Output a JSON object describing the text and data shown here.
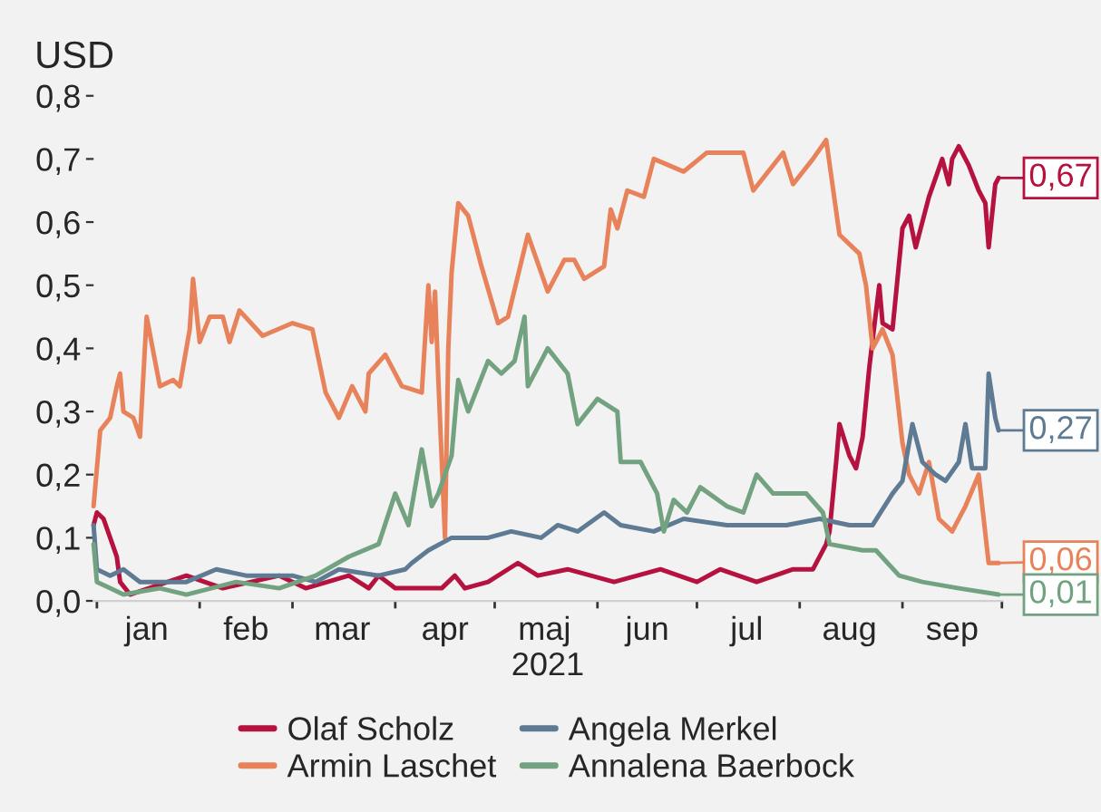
{
  "chart_data": {
    "type": "line",
    "ylabel": "USD",
    "xlabel": "2021",
    "legend": "bottom",
    "grid": false,
    "marker": "none",
    "line_style": "solid",
    "xticks": [
      {
        "value": "2021-01-01",
        "label": null
      },
      {
        "value": "2021-01-16",
        "label": "jan"
      },
      {
        "value": "2021-02-01",
        "label": null
      },
      {
        "value": "2021-02-15",
        "label": "feb"
      },
      {
        "value": "2021-03-01",
        "label": null
      },
      {
        "value": "2021-03-16",
        "label": "mar"
      },
      {
        "value": "2021-04-01",
        "label": null
      },
      {
        "value": "2021-04-16",
        "label": "apr"
      },
      {
        "value": "2021-05-01",
        "label": null
      },
      {
        "value": "2021-05-16",
        "label": "maj"
      },
      {
        "value": "2021-06-01",
        "label": null
      },
      {
        "value": "2021-06-16",
        "label": "jun"
      },
      {
        "value": "2021-07-01",
        "label": null
      },
      {
        "value": "2021-07-16",
        "label": "jul"
      },
      {
        "value": "2021-08-01",
        "label": null
      },
      {
        "value": "2021-08-16",
        "label": "aug"
      },
      {
        "value": "2021-09-01",
        "label": null
      },
      {
        "value": "2021-09-16",
        "label": "sep"
      },
      {
        "value": "2021-10-01",
        "label": null
      }
    ],
    "xlim": [
      "2020-12-31",
      "2021-10-01"
    ],
    "ylim": [
      0,
      0.8
    ],
    "yticks": [
      {
        "value": 0,
        "label": "0,0"
      },
      {
        "value": 0.1,
        "label": "0,1"
      },
      {
        "value": 0.2,
        "label": "0,2"
      },
      {
        "value": 0.3,
        "label": "0,3"
      },
      {
        "value": 0.4,
        "label": "0,4"
      },
      {
        "value": 0.5,
        "label": "0,5"
      },
      {
        "value": 0.6,
        "label": "0,6"
      },
      {
        "value": 0.7,
        "label": "0,7"
      },
      {
        "value": 0.8,
        "label": "0,8"
      }
    ],
    "series": [
      {
        "name": "Olaf Scholz",
        "color": "#b5123f",
        "x": [
          "2020-12-31",
          "2021-01-01",
          "2021-01-03",
          "2021-01-05",
          "2021-01-07",
          "2021-01-08",
          "2021-01-11",
          "2021-01-28",
          "2021-02-08",
          "2021-02-25",
          "2021-03-05",
          "2021-03-18",
          "2021-03-24",
          "2021-03-27",
          "2021-04-01",
          "2021-04-15",
          "2021-04-19",
          "2021-04-22",
          "2021-04-29",
          "2021-05-08",
          "2021-05-14",
          "2021-05-23",
          "2021-06-06",
          "2021-06-20",
          "2021-07-01",
          "2021-07-08",
          "2021-07-19",
          "2021-07-30",
          "2021-08-05",
          "2021-08-09",
          "2021-08-10",
          "2021-08-12",
          "2021-08-13",
          "2021-08-16",
          "2021-08-18",
          "2021-08-20",
          "2021-08-22",
          "2021-08-25",
          "2021-08-26",
          "2021-08-29",
          "2021-09-01",
          "2021-09-03",
          "2021-09-05",
          "2021-09-09",
          "2021-09-13",
          "2021-09-15",
          "2021-09-16",
          "2021-09-18",
          "2021-09-21",
          "2021-09-24",
          "2021-09-26",
          "2021-09-27",
          "2021-09-29",
          "2021-09-30"
        ],
        "values": [
          0.12,
          0.14,
          0.13,
          0.1,
          0.07,
          0.03,
          0.01,
          0.04,
          0.02,
          0.04,
          0.02,
          0.04,
          0.02,
          0.04,
          0.02,
          0.02,
          0.04,
          0.02,
          0.03,
          0.06,
          0.04,
          0.05,
          0.03,
          0.05,
          0.03,
          0.05,
          0.03,
          0.05,
          0.05,
          0.09,
          0.11,
          0.22,
          0.28,
          0.23,
          0.21,
          0.26,
          0.37,
          0.5,
          0.44,
          0.43,
          0.59,
          0.61,
          0.56,
          0.64,
          0.7,
          0.66,
          0.7,
          0.72,
          0.69,
          0.65,
          0.63,
          0.56,
          0.66,
          0.67
        ]
      },
      {
        "name": "Armin Laschet",
        "color": "#e8825a",
        "x": [
          "2020-12-31",
          "2021-01-02",
          "2021-01-05",
          "2021-01-07",
          "2021-01-08",
          "2021-01-09",
          "2021-01-12",
          "2021-01-14",
          "2021-01-16",
          "2021-01-20",
          "2021-01-24",
          "2021-01-26",
          "2021-01-29",
          "2021-01-30",
          "2021-02-01",
          "2021-02-04",
          "2021-02-08",
          "2021-02-10",
          "2021-02-13",
          "2021-02-20",
          "2021-03-01",
          "2021-03-07",
          "2021-03-11",
          "2021-03-15",
          "2021-03-19",
          "2021-03-23",
          "2021-03-24",
          "2021-03-29",
          "2021-04-03",
          "2021-04-09",
          "2021-04-11",
          "2021-04-12",
          "2021-04-13",
          "2021-04-14",
          "2021-04-16",
          "2021-04-17",
          "2021-04-18",
          "2021-04-20",
          "2021-04-23",
          "2021-04-27",
          "2021-05-02",
          "2021-05-05",
          "2021-05-11",
          "2021-05-17",
          "2021-05-22",
          "2021-05-25",
          "2021-05-28",
          "2021-06-03",
          "2021-06-05",
          "2021-06-07",
          "2021-06-10",
          "2021-06-15",
          "2021-06-18",
          "2021-06-27",
          "2021-07-04",
          "2021-07-15",
          "2021-07-18",
          "2021-07-27",
          "2021-07-30",
          "2021-08-05",
          "2021-08-09",
          "2021-08-13",
          "2021-08-19",
          "2021-08-21",
          "2021-08-23",
          "2021-08-26",
          "2021-08-29",
          "2021-09-01",
          "2021-09-03",
          "2021-09-06",
          "2021-09-09",
          "2021-09-12",
          "2021-09-16",
          "2021-09-20",
          "2021-09-24",
          "2021-09-27",
          "2021-09-30"
        ],
        "values": [
          0.15,
          0.27,
          0.29,
          0.34,
          0.36,
          0.3,
          0.29,
          0.26,
          0.45,
          0.34,
          0.35,
          0.34,
          0.43,
          0.51,
          0.41,
          0.45,
          0.45,
          0.41,
          0.46,
          0.42,
          0.44,
          0.43,
          0.33,
          0.29,
          0.34,
          0.3,
          0.36,
          0.39,
          0.34,
          0.33,
          0.5,
          0.41,
          0.49,
          0.35,
          0.1,
          0.4,
          0.52,
          0.63,
          0.61,
          0.53,
          0.44,
          0.45,
          0.58,
          0.49,
          0.54,
          0.54,
          0.51,
          0.53,
          0.62,
          0.59,
          0.65,
          0.64,
          0.7,
          0.68,
          0.71,
          0.71,
          0.65,
          0.71,
          0.66,
          0.7,
          0.73,
          0.58,
          0.55,
          0.5,
          0.4,
          0.43,
          0.39,
          0.25,
          0.2,
          0.17,
          0.22,
          0.13,
          0.11,
          0.15,
          0.2,
          0.06,
          0.06
        ]
      },
      {
        "name": "Angela Merkel",
        "color": "#5f7a93",
        "x": [
          "2020-12-31",
          "2021-01-01",
          "2021-01-05",
          "2021-01-09",
          "2021-01-14",
          "2021-01-28",
          "2021-02-06",
          "2021-02-15",
          "2021-03-01",
          "2021-03-08",
          "2021-03-15",
          "2021-03-27",
          "2021-04-04",
          "2021-04-06",
          "2021-04-11",
          "2021-04-18",
          "2021-04-29",
          "2021-05-06",
          "2021-05-15",
          "2021-05-20",
          "2021-05-26",
          "2021-06-03",
          "2021-06-08",
          "2021-06-18",
          "2021-06-27",
          "2021-07-10",
          "2021-07-28",
          "2021-08-07",
          "2021-08-16",
          "2021-08-23",
          "2021-08-29",
          "2021-09-01",
          "2021-09-04",
          "2021-09-07",
          "2021-09-11",
          "2021-09-14",
          "2021-09-18",
          "2021-09-20",
          "2021-09-22",
          "2021-09-26",
          "2021-09-27",
          "2021-09-29",
          "2021-09-30"
        ],
        "values": [
          0.12,
          0.05,
          0.04,
          0.05,
          0.03,
          0.03,
          0.05,
          0.04,
          0.04,
          0.03,
          0.05,
          0.04,
          0.05,
          0.06,
          0.08,
          0.1,
          0.1,
          0.11,
          0.1,
          0.12,
          0.11,
          0.14,
          0.12,
          0.11,
          0.13,
          0.12,
          0.12,
          0.13,
          0.12,
          0.12,
          0.17,
          0.19,
          0.28,
          0.22,
          0.2,
          0.19,
          0.22,
          0.28,
          0.21,
          0.21,
          0.36,
          0.29,
          0.27
        ]
      },
      {
        "name": "Annalena Baerbock",
        "color": "#73a281",
        "x": [
          "2020-12-31",
          "2021-01-01",
          "2021-01-05",
          "2021-01-09",
          "2021-01-20",
          "2021-01-28",
          "2021-02-12",
          "2021-02-25",
          "2021-03-08",
          "2021-03-18",
          "2021-03-27",
          "2021-04-01",
          "2021-04-05",
          "2021-04-09",
          "2021-04-12",
          "2021-04-14",
          "2021-04-18",
          "2021-04-20",
          "2021-04-23",
          "2021-04-29",
          "2021-05-03",
          "2021-05-07",
          "2021-05-10",
          "2021-05-11",
          "2021-05-15",
          "2021-05-17",
          "2021-05-23",
          "2021-05-26",
          "2021-06-01",
          "2021-06-07",
          "2021-06-08",
          "2021-06-14",
          "2021-06-19",
          "2021-06-21",
          "2021-06-24",
          "2021-06-28",
          "2021-07-02",
          "2021-07-10",
          "2021-07-15",
          "2021-07-19",
          "2021-07-24",
          "2021-08-03",
          "2021-08-08",
          "2021-08-10",
          "2021-08-20",
          "2021-08-24",
          "2021-08-31",
          "2021-09-07",
          "2021-09-18",
          "2021-09-30"
        ],
        "values": [
          0.09,
          0.03,
          0.02,
          0.01,
          0.02,
          0.01,
          0.03,
          0.02,
          0.04,
          0.07,
          0.09,
          0.17,
          0.12,
          0.24,
          0.15,
          0.17,
          0.23,
          0.35,
          0.3,
          0.38,
          0.36,
          0.38,
          0.45,
          0.34,
          0.38,
          0.4,
          0.36,
          0.28,
          0.32,
          0.3,
          0.22,
          0.22,
          0.17,
          0.11,
          0.16,
          0.14,
          0.18,
          0.15,
          0.14,
          0.2,
          0.17,
          0.17,
          0.14,
          0.09,
          0.08,
          0.08,
          0.04,
          0.03,
          0.02,
          0.01
        ]
      }
    ],
    "annotations": [
      {
        "text": "0,67",
        "x": "2021-09-30",
        "y": 0.67
      },
      {
        "text": "0,06",
        "x": "2021-09-30",
        "y": 0.06
      },
      {
        "text": "0,27",
        "x": "2021-09-30",
        "y": 0.27
      },
      {
        "text": "0,01",
        "x": "2021-09-30",
        "y": 0.01
      }
    ]
  }
}
